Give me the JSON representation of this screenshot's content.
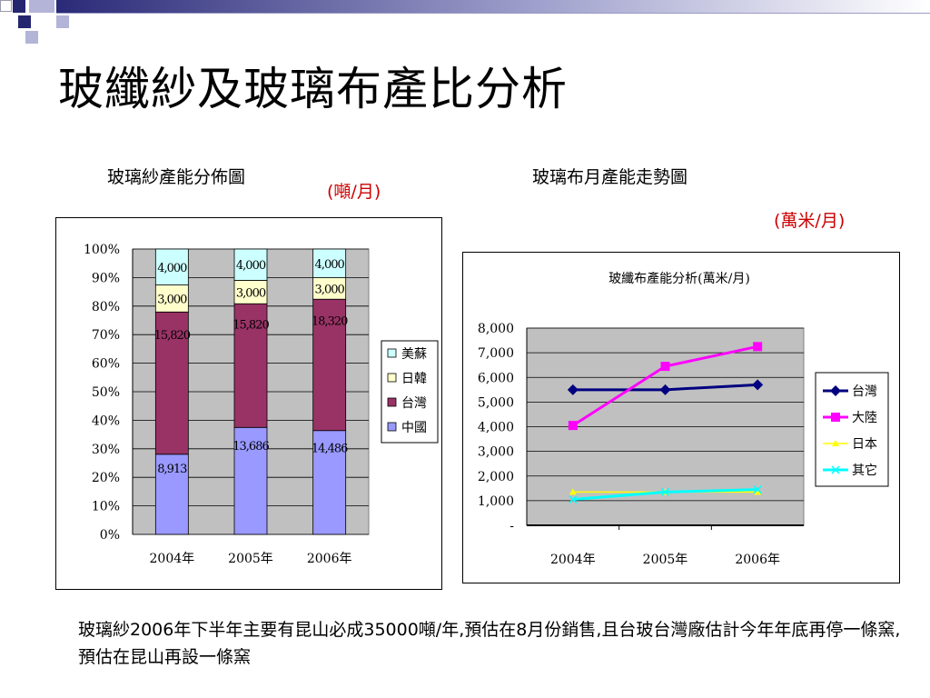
{
  "slide": {
    "title": "玻纖紗及玻璃布產比分析",
    "left_caption": "玻璃紗產能分佈圖",
    "left_unit": "(噸/月)",
    "right_caption": "玻璃布月產能走勢圖",
    "right_unit": "(萬米/月)",
    "note": "玻璃紗2006年下半年主要有昆山必成35000噸/年,預估在8月份銷售,且台玻台灣廠估計今年年底再停一條窯,預估在昆山再設一條窯"
  },
  "chart_data": [
    {
      "type": "bar",
      "stacked": "percent",
      "title": "",
      "categories": [
        "2004年",
        "2005年",
        "2006年"
      ],
      "series": [
        {
          "name": "中國",
          "values": [
            8913,
            13686,
            14486
          ],
          "labels": [
            "8,913",
            "13,686",
            "14,486"
          ],
          "color": "#9999ff"
        },
        {
          "name": "台灣",
          "values": [
            15820,
            15820,
            18320
          ],
          "labels": [
            "15,820",
            "15,820",
            "18,320"
          ],
          "color": "#993366"
        },
        {
          "name": "日韓",
          "values": [
            3000,
            3000,
            3000
          ],
          "labels": [
            "3,000",
            "3,000",
            "3,000"
          ],
          "color": "#ffffcc"
        },
        {
          "name": "美蘇",
          "values": [
            4000,
            4000,
            4000
          ],
          "labels": [
            "4,000",
            "4,000",
            "4,000"
          ],
          "color": "#ccffff"
        }
      ],
      "yticks": [
        "0%",
        "10%",
        "20%",
        "30%",
        "40%",
        "50%",
        "60%",
        "70%",
        "80%",
        "90%",
        "100%"
      ],
      "ylim": [
        0,
        100
      ],
      "grid": true,
      "plot_bg": "#c0c0c0",
      "legend": "right"
    },
    {
      "type": "line",
      "title": "玻纖布產能分析(萬米/月)",
      "categories": [
        "2004年",
        "2005年",
        "2006年"
      ],
      "series": [
        {
          "name": "台灣",
          "values": [
            5500,
            5500,
            5700
          ],
          "color": "#000080",
          "marker": "diamond"
        },
        {
          "name": "大陸",
          "values": [
            4050,
            6450,
            7250
          ],
          "color": "#ff00ff",
          "marker": "square"
        },
        {
          "name": "日本",
          "values": [
            1350,
            1350,
            1350
          ],
          "color": "#ffff00",
          "marker": "triangle"
        },
        {
          "name": "其它",
          "values": [
            1050,
            1350,
            1450
          ],
          "color": "#00ffff",
          "marker": "x"
        }
      ],
      "yticks": [
        "-",
        "1,000",
        "2,000",
        "3,000",
        "4,000",
        "5,000",
        "6,000",
        "7,000",
        "8,000"
      ],
      "ylim": [
        0,
        8000
      ],
      "grid": true,
      "plot_bg": "#c0c0c0",
      "legend": "right"
    }
  ]
}
